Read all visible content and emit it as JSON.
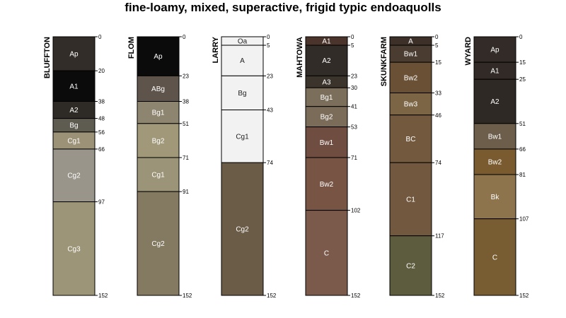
{
  "title": "fine-loamy, mixed, superactive, frigid typic endoaquolls",
  "max_depth": 152,
  "profiles": [
    {
      "name": "BLUFFTON",
      "horizons": [
        {
          "name": "Ap",
          "top": 0,
          "bottom": 20,
          "color": "#332d29"
        },
        {
          "name": "A1",
          "top": 20,
          "bottom": 38,
          "color": "#0b0b0b"
        },
        {
          "name": "A2",
          "top": 38,
          "bottom": 48,
          "color": "#2e2a26"
        },
        {
          "name": "Bg",
          "top": 48,
          "bottom": 56,
          "color": "#5e5b50"
        },
        {
          "name": "Cg1",
          "top": 56,
          "bottom": 66,
          "color": "#9c9277"
        },
        {
          "name": "Cg2",
          "top": 66,
          "bottom": 97,
          "color": "#99958a"
        },
        {
          "name": "Cg3",
          "top": 97,
          "bottom": 152,
          "color": "#9d9577"
        }
      ]
    },
    {
      "name": "FLOM",
      "horizons": [
        {
          "name": "Ap",
          "top": 0,
          "bottom": 23,
          "color": "#0b0b0b"
        },
        {
          "name": "ABg",
          "top": 23,
          "bottom": 38,
          "color": "#5e544b"
        },
        {
          "name": "Bg1",
          "top": 38,
          "bottom": 51,
          "color": "#8d8570"
        },
        {
          "name": "Bg2",
          "top": 51,
          "bottom": 71,
          "color": "#a19779"
        },
        {
          "name": "Cg1",
          "top": 71,
          "bottom": 91,
          "color": "#9c9478"
        },
        {
          "name": "Cg2",
          "top": 91,
          "bottom": 152,
          "color": "#847961"
        }
      ]
    },
    {
      "name": "LARRY",
      "horizons": [
        {
          "name": "Oa",
          "top": 0,
          "bottom": 5,
          "color": "#f2f2f2"
        },
        {
          "name": "A",
          "top": 5,
          "bottom": 23,
          "color": "#f2f2f2"
        },
        {
          "name": "Bg",
          "top": 23,
          "bottom": 43,
          "color": "#f2f2f2"
        },
        {
          "name": "Cg1",
          "top": 43,
          "bottom": 74,
          "color": "#f2f2f2"
        },
        {
          "name": "Cg2",
          "top": 74,
          "bottom": 152,
          "color": "#6b5c47"
        }
      ]
    },
    {
      "name": "MAHTOWA",
      "horizons": [
        {
          "name": "A1",
          "top": 0,
          "bottom": 5,
          "color": "#4a342b"
        },
        {
          "name": "A2",
          "top": 5,
          "bottom": 23,
          "color": "#312c28"
        },
        {
          "name": "A3",
          "top": 23,
          "bottom": 30,
          "color": "#3b342d"
        },
        {
          "name": "Bg1",
          "top": 30,
          "bottom": 41,
          "color": "#7b6f5b"
        },
        {
          "name": "Bg2",
          "top": 41,
          "bottom": 53,
          "color": "#7b6c59"
        },
        {
          "name": "Bw1",
          "top": 53,
          "bottom": 71,
          "color": "#6f4d40"
        },
        {
          "name": "Bw2",
          "top": 71,
          "bottom": 102,
          "color": "#785444"
        },
        {
          "name": "C",
          "top": 102,
          "bottom": 152,
          "color": "#7b5a4b"
        }
      ]
    },
    {
      "name": "SKUNKFARM",
      "horizons": [
        {
          "name": "A",
          "top": 0,
          "bottom": 5,
          "color": "#3c3028"
        },
        {
          "name": "Bw1",
          "top": 5,
          "bottom": 15,
          "color": "#4a3c30"
        },
        {
          "name": "Bw2",
          "top": 15,
          "bottom": 33,
          "color": "#6a5136"
        },
        {
          "name": "Bw3",
          "top": 33,
          "bottom": 46,
          "color": "#7c6545"
        },
        {
          "name": "BC",
          "top": 46,
          "bottom": 74,
          "color": "#735a3f"
        },
        {
          "name": "C1",
          "top": 74,
          "bottom": 117,
          "color": "#72583e"
        },
        {
          "name": "C2",
          "top": 117,
          "bottom": 152,
          "color": "#5e5c3e"
        }
      ]
    },
    {
      "name": "WYARD",
      "horizons": [
        {
          "name": "Ap",
          "top": 0,
          "bottom": 15,
          "color": "#322b27"
        },
        {
          "name": "A1",
          "top": 15,
          "bottom": 25,
          "color": "#312a26"
        },
        {
          "name": "A2",
          "top": 25,
          "bottom": 51,
          "color": "#2f2925"
        },
        {
          "name": "Bw1",
          "top": 51,
          "bottom": 66,
          "color": "#6c5e4b"
        },
        {
          "name": "Bw2",
          "top": 66,
          "bottom": 81,
          "color": "#7a5b30"
        },
        {
          "name": "Bk",
          "top": 81,
          "bottom": 107,
          "color": "#8d744c"
        },
        {
          "name": "C",
          "top": 107,
          "bottom": 152,
          "color": "#785c32"
        }
      ]
    }
  ]
}
